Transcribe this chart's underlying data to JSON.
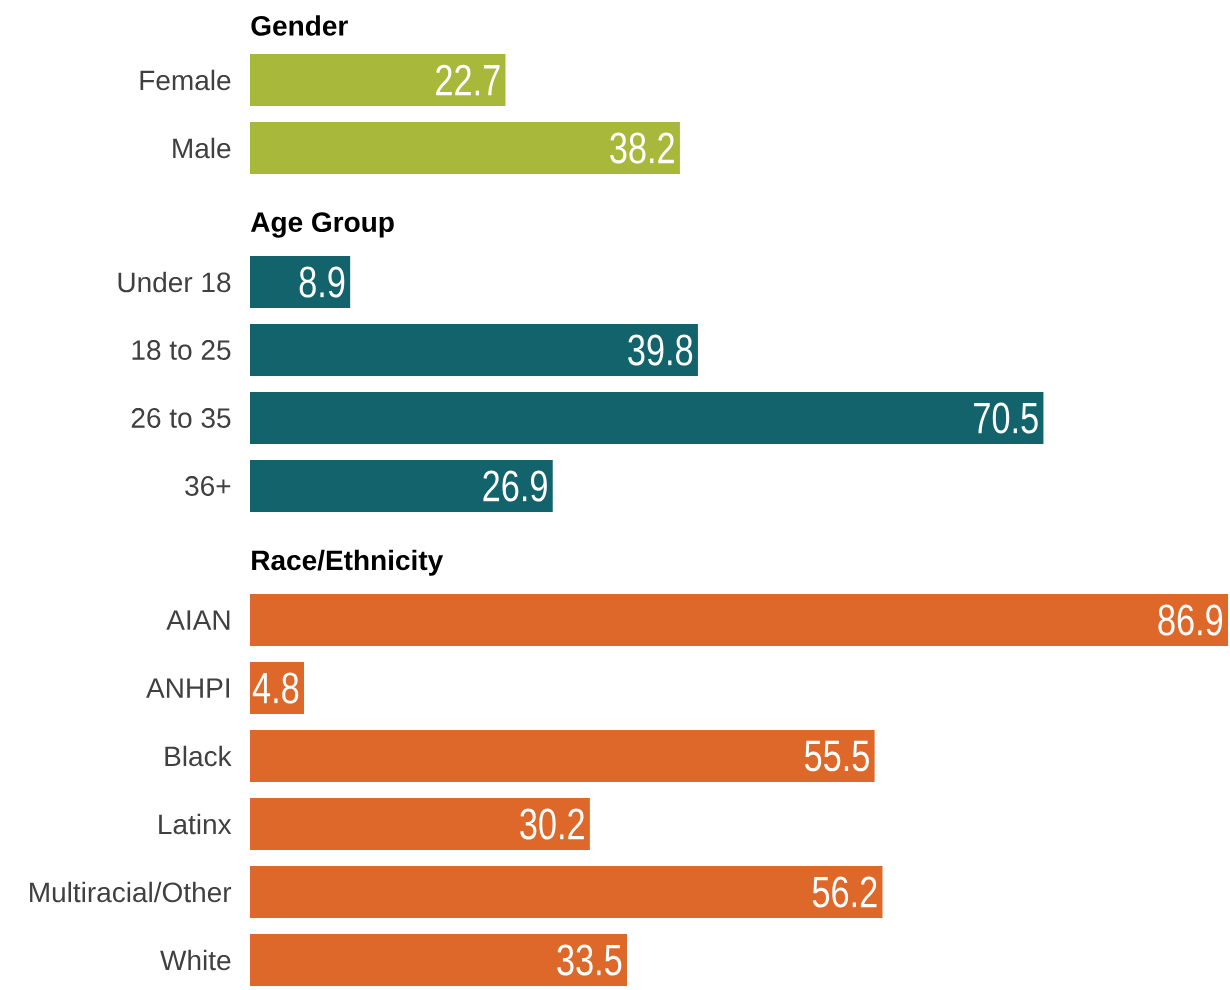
{
  "chart_data": [
    {
      "type": "bar",
      "orientation": "horizontal",
      "title": "Gender",
      "categories": [
        "Female",
        "Male"
      ],
      "values": [
        22.7,
        38.2
      ],
      "color": "#a8b83a",
      "data_labels": true
    },
    {
      "type": "bar",
      "orientation": "horizontal",
      "title": "Age Group",
      "categories": [
        "Under 18",
        "18 to 25",
        "26 to 35",
        "36+"
      ],
      "values": [
        8.9,
        39.8,
        70.5,
        26.9
      ],
      "color": "#12636c",
      "data_labels": true
    },
    {
      "type": "bar",
      "orientation": "horizontal",
      "title": "Race/Ethnicity",
      "categories": [
        "AIAN",
        "ANHPI",
        "Black",
        "Latinx",
        "Multiracial/Other",
        "White"
      ],
      "values": [
        86.9,
        4.8,
        55.5,
        30.2,
        56.2,
        33.5
      ],
      "color": "#de6829",
      "data_labels": true
    }
  ]
}
